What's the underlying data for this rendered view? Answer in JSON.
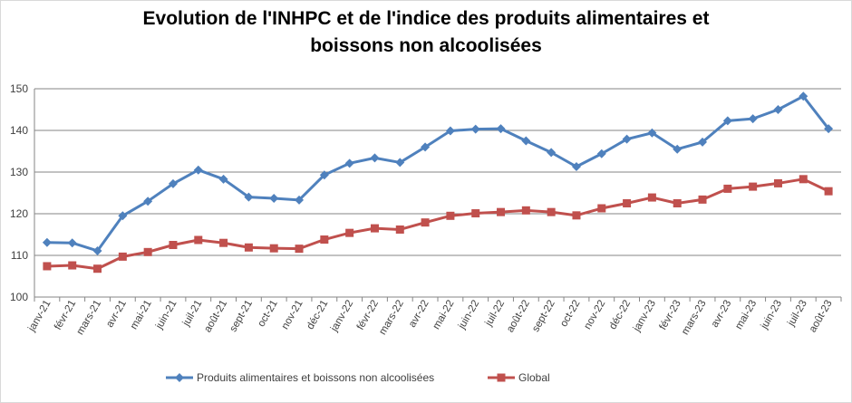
{
  "chart_data": {
    "type": "line",
    "title_line1": "Evolution de l'INHPC et de l'indice des produits alimentaires et",
    "title_line2": "boissons non alcoolisées",
    "xlabel": "",
    "ylabel": "",
    "ylim": [
      100,
      150
    ],
    "yticks": [
      100,
      110,
      120,
      130,
      140,
      150
    ],
    "grid": true,
    "legend_position": "bottom",
    "categories": [
      "janv-21",
      "févr-21",
      "mars-21",
      "avr-21",
      "mai-21",
      "juin-21",
      "juil-21",
      "août-21",
      "sept-21",
      "oct-21",
      "nov-21",
      "déc-21",
      "janv-22",
      "févr-22",
      "mars-22",
      "avr-22",
      "mai-22",
      "juin-22",
      "juil-22",
      "août-22",
      "sept-22",
      "oct-22",
      "nov-22",
      "déc-22",
      "janv-23",
      "févr-23",
      "mars-23",
      "avr-23",
      "mai-23",
      "juin-23",
      "juil-23",
      "août-23"
    ],
    "series": [
      {
        "name": "Produits alimentaires et boissons non alcoolisées",
        "color": "#4f81bd",
        "marker": "diamond",
        "values": [
          113.1,
          113.0,
          111.1,
          119.5,
          123.0,
          127.2,
          130.5,
          128.3,
          124.0,
          123.7,
          123.3,
          129.3,
          132.1,
          133.4,
          132.3,
          136.0,
          139.9,
          140.3,
          140.4,
          137.5,
          134.7,
          131.3,
          134.4,
          137.9,
          139.4,
          135.5,
          137.2,
          142.3,
          142.8,
          145.0,
          148.2,
          140.4
        ]
      },
      {
        "name": "Global",
        "color": "#c0504d",
        "marker": "square",
        "values": [
          107.4,
          107.6,
          106.8,
          109.7,
          110.8,
          112.5,
          113.7,
          113.0,
          111.9,
          111.7,
          111.6,
          113.8,
          115.4,
          116.5,
          116.2,
          117.9,
          119.5,
          120.1,
          120.4,
          120.8,
          120.4,
          119.6,
          121.3,
          122.5,
          123.9,
          122.5,
          123.4,
          126.0,
          126.5,
          127.3,
          128.3,
          125.4
        ]
      }
    ]
  }
}
